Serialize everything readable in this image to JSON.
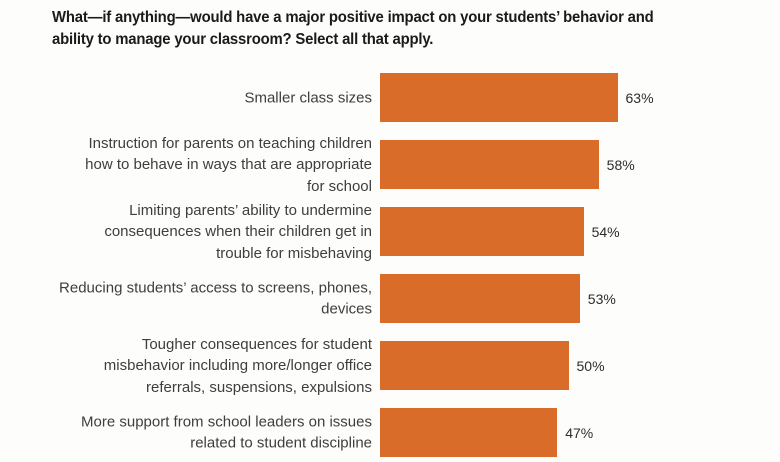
{
  "header": {
    "title_lines": [
      "What—if anything—would have a major positive impact on your students’ behavior and",
      "ability to manage your classroom? Select all that apply."
    ]
  },
  "chart_data": {
    "type": "bar",
    "orientation": "horizontal",
    "title": "What—if anything—would have a major positive impact on your students’ behavior and ability to manage your classroom? Select all that apply.",
    "categories": [
      "Smaller class sizes",
      "Instruction for parents on teaching children how to behave in ways that are appropriate for school",
      "Limiting parents’ ability to undermine consequences when their children get in trouble for misbehaving",
      "Reducing students’ access to screens, phones, devices",
      "Tougher consequences for student misbehavior including more/longer office referrals, suspensions, expulsions",
      "More support from school leaders on issues related to student discipline"
    ],
    "category_lines": [
      [
        "Smaller class sizes"
      ],
      [
        "Instruction for parents on teaching children",
        "how to behave in ways that are appropriate",
        "for school"
      ],
      [
        "Limiting parents’ ability to undermine",
        "consequences when their children get in",
        "trouble for misbehaving"
      ],
      [
        "Reducing students’ access to screens, phones,",
        "devices"
      ],
      [
        "Tougher consequences for student",
        "misbehavior including more/longer office",
        "referrals, suspensions, expulsions"
      ],
      [
        "More support from school leaders on issues",
        "related to student discipline"
      ]
    ],
    "values": [
      63,
      58,
      54,
      53,
      50,
      47
    ],
    "value_labels": [
      "63%",
      "58%",
      "54%",
      "53%",
      "50%",
      "47%"
    ],
    "xlim": [
      0,
      100
    ],
    "grid": false,
    "legend": false,
    "value_label_position": "right-of-bar"
  },
  "colors": {
    "bar": "#d96c29",
    "title_text": "#1a1a1a",
    "category_text": "#3e3e3e",
    "value_text": "#2d2d2d",
    "background": "#fdfdfb"
  }
}
